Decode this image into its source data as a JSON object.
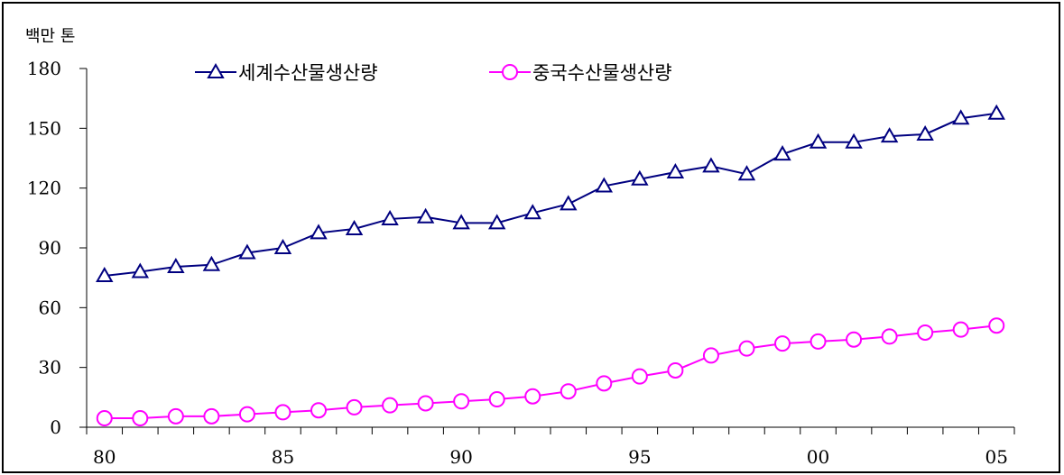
{
  "chart_data": {
    "type": "line",
    "y_unit_label": "백만 톤",
    "x_tick_labels": [
      "80",
      "85",
      "90",
      "95",
      "00",
      "05"
    ],
    "y_ticks": [
      0,
      30,
      60,
      90,
      120,
      150,
      180
    ],
    "ylim": [
      0,
      180
    ],
    "x": [
      1980,
      1981,
      1982,
      1983,
      1984,
      1985,
      1986,
      1987,
      1988,
      1989,
      1990,
      1991,
      1992,
      1993,
      1994,
      1995,
      1996,
      1997,
      1998,
      1999,
      2000,
      2001,
      2002,
      2003,
      2004,
      2005
    ],
    "xlim": [
      1979.5,
      2005.5
    ],
    "grid": false,
    "legend_position": "top",
    "series": [
      {
        "name": "세계수산물생산량",
        "color": "#000080",
        "marker": "triangle",
        "values": [
          76,
          78,
          80.5,
          81.5,
          87.5,
          90,
          97.5,
          99.5,
          104.5,
          105.5,
          102.5,
          102.5,
          107.5,
          112,
          121,
          124.5,
          128,
          131,
          127,
          137,
          143,
          143,
          146,
          147,
          155,
          157.5
        ]
      },
      {
        "name": "중국수산물생산량",
        "color": "#ff00ff",
        "marker": "circle",
        "values": [
          4.5,
          4.5,
          5.5,
          5.5,
          6.5,
          7.5,
          8.5,
          10,
          11,
          12,
          13,
          14,
          15.5,
          18,
          22,
          25.5,
          28.5,
          36,
          39.5,
          42,
          43,
          44,
          45.5,
          47.5,
          49,
          51
        ]
      }
    ]
  }
}
